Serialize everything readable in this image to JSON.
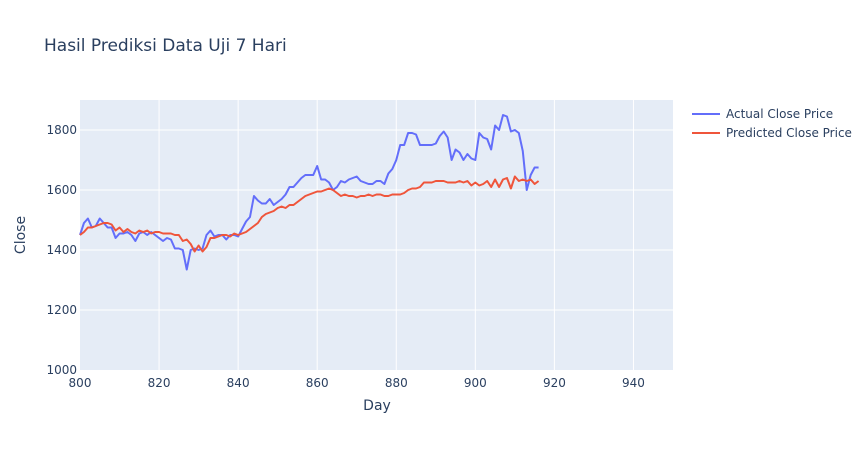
{
  "chart_data": {
    "type": "line",
    "title": "Hasil Prediksi Data Uji 7 Hari",
    "xlabel": "Day",
    "ylabel": "Close",
    "xlim": [
      800,
      950
    ],
    "ylim": [
      1000,
      1900
    ],
    "x_ticks": [
      800,
      820,
      840,
      860,
      880,
      900,
      920,
      940
    ],
    "y_ticks": [
      1000,
      1200,
      1400,
      1600,
      1800
    ],
    "grid": true,
    "legend_position": "top-right, outside plot",
    "series": [
      {
        "name": "Actual Close Price",
        "color": "#636efa",
        "x": [
          800,
          801,
          802,
          803,
          804,
          805,
          806,
          807,
          808,
          809,
          810,
          811,
          812,
          813,
          814,
          815,
          816,
          817,
          818,
          819,
          820,
          821,
          822,
          823,
          824,
          825,
          826,
          827,
          828,
          829,
          830,
          831,
          832,
          833,
          834,
          835,
          836,
          837,
          838,
          839,
          840,
          841,
          842,
          843,
          844,
          845,
          846,
          847,
          848,
          849,
          850,
          851,
          852,
          853,
          854,
          855,
          856,
          857,
          858,
          859,
          860,
          861,
          862,
          863,
          864,
          865,
          866,
          867,
          868,
          869,
          870,
          871,
          872,
          873,
          874,
          875,
          876,
          877,
          878,
          879,
          880,
          881,
          882,
          883,
          884,
          885,
          886,
          887,
          888,
          889,
          890,
          891,
          892,
          893,
          894,
          895,
          896,
          897,
          898,
          899,
          900,
          901,
          902,
          903,
          904,
          905,
          906,
          907,
          908,
          909,
          910,
          911,
          912,
          913,
          914,
          915,
          916
        ],
        "values": [
          1450,
          1490,
          1505,
          1475,
          1480,
          1505,
          1490,
          1475,
          1475,
          1440,
          1455,
          1455,
          1460,
          1450,
          1430,
          1455,
          1460,
          1450,
          1460,
          1450,
          1440,
          1430,
          1440,
          1435,
          1405,
          1405,
          1400,
          1335,
          1400,
          1405,
          1400,
          1405,
          1450,
          1465,
          1445,
          1450,
          1450,
          1435,
          1450,
          1450,
          1445,
          1470,
          1495,
          1510,
          1580,
          1565,
          1555,
          1555,
          1570,
          1550,
          1560,
          1570,
          1585,
          1610,
          1610,
          1625,
          1640,
          1650,
          1650,
          1650,
          1680,
          1635,
          1635,
          1625,
          1600,
          1610,
          1630,
          1625,
          1635,
          1640,
          1645,
          1630,
          1625,
          1620,
          1620,
          1630,
          1630,
          1620,
          1655,
          1670,
          1700,
          1750,
          1750,
          1790,
          1790,
          1785,
          1750,
          1750,
          1750,
          1750,
          1755,
          1780,
          1795,
          1775,
          1700,
          1735,
          1725,
          1700,
          1720,
          1705,
          1700,
          1790,
          1775,
          1770,
          1735,
          1815,
          1800,
          1850,
          1845,
          1795,
          1800,
          1790,
          1730,
          1600,
          1650,
          1675,
          1675
        ],
        "show_last": 117
      },
      {
        "name": "Predicted Close Price",
        "color": "#ef553b",
        "x": [
          800,
          801,
          802,
          803,
          804,
          805,
          806,
          807,
          808,
          809,
          810,
          811,
          812,
          813,
          814,
          815,
          816,
          817,
          818,
          819,
          820,
          821,
          822,
          823,
          824,
          825,
          826,
          827,
          828,
          829,
          830,
          831,
          832,
          833,
          834,
          835,
          836,
          837,
          838,
          839,
          840,
          841,
          842,
          843,
          844,
          845,
          846,
          847,
          848,
          849,
          850,
          851,
          852,
          853,
          854,
          855,
          856,
          857,
          858,
          859,
          860,
          861,
          862,
          863,
          864,
          865,
          866,
          867,
          868,
          869,
          870,
          871,
          872,
          873,
          874,
          875,
          876,
          877,
          878,
          879,
          880,
          881,
          882,
          883,
          884,
          885,
          886,
          887,
          888,
          889,
          890,
          891,
          892,
          893,
          894,
          895,
          896,
          897,
          898,
          899,
          900,
          901,
          902,
          903,
          904,
          905,
          906,
          907,
          908,
          909,
          910,
          911,
          912,
          913,
          914,
          915,
          916
        ],
        "values": [
          1450,
          1460,
          1475,
          1475,
          1480,
          1485,
          1490,
          1490,
          1485,
          1465,
          1475,
          1460,
          1470,
          1460,
          1455,
          1465,
          1460,
          1465,
          1455,
          1460,
          1460,
          1455,
          1455,
          1455,
          1450,
          1450,
          1430,
          1435,
          1420,
          1395,
          1415,
          1395,
          1410,
          1440,
          1440,
          1445,
          1450,
          1450,
          1445,
          1455,
          1450,
          1455,
          1460,
          1470,
          1480,
          1490,
          1510,
          1520,
          1525,
          1530,
          1540,
          1545,
          1540,
          1550,
          1550,
          1560,
          1570,
          1580,
          1585,
          1590,
          1595,
          1595,
          1600,
          1605,
          1600,
          1590,
          1580,
          1585,
          1580,
          1580,
          1575,
          1580,
          1580,
          1585,
          1580,
          1585,
          1585,
          1580,
          1580,
          1585,
          1585,
          1585,
          1590,
          1600,
          1605,
          1605,
          1610,
          1625,
          1625,
          1625,
          1630,
          1630,
          1630,
          1625,
          1625,
          1625,
          1630,
          1625,
          1630,
          1615,
          1625,
          1615,
          1620,
          1630,
          1610,
          1635,
          1610,
          1635,
          1640,
          1605,
          1645,
          1630,
          1635,
          1630,
          1635,
          1620,
          1630
        ]
      }
    ]
  }
}
